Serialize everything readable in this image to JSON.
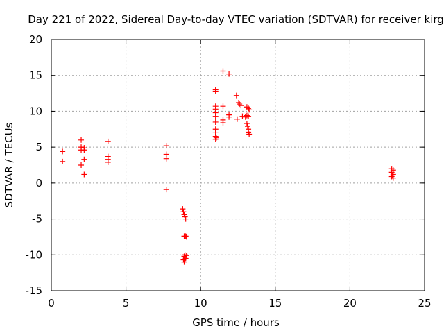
{
  "chart_data": {
    "type": "scatter",
    "title": "Day 221 of 2022, Sidereal Day-to-day VTEC variation (SDTVAR) for receiver kirg",
    "xlabel": "GPS time / hours",
    "ylabel": "SDTVAR / TECUs",
    "xlim": [
      0,
      25
    ],
    "ylim": [
      -15,
      20
    ],
    "xticks": [
      0,
      5,
      10,
      15,
      20,
      25
    ],
    "yticks": [
      -15,
      -10,
      -5,
      0,
      5,
      10,
      15,
      20
    ],
    "grid": true,
    "marker": "+",
    "series": [
      {
        "name": "SDTVAR",
        "color": "#ff0000",
        "points": [
          [
            0.75,
            4.4
          ],
          [
            0.75,
            3.0
          ],
          [
            2.0,
            6.0
          ],
          [
            2.0,
            5.0
          ],
          [
            2.0,
            4.6
          ],
          [
            2.0,
            2.5
          ],
          [
            2.2,
            4.9
          ],
          [
            2.2,
            4.6
          ],
          [
            2.2,
            3.3
          ],
          [
            2.2,
            1.2
          ],
          [
            3.8,
            5.8
          ],
          [
            3.8,
            3.7
          ],
          [
            3.8,
            3.3
          ],
          [
            3.8,
            2.9
          ],
          [
            7.7,
            5.2
          ],
          [
            7.7,
            4.0
          ],
          [
            7.7,
            3.4
          ],
          [
            7.7,
            -0.9
          ],
          [
            8.8,
            -3.6
          ],
          [
            8.85,
            -4.0
          ],
          [
            8.9,
            -4.4
          ],
          [
            8.95,
            -4.7
          ],
          [
            9.0,
            -5.0
          ],
          [
            8.9,
            -7.4
          ],
          [
            9.0,
            -7.4
          ],
          [
            9.05,
            -7.5
          ],
          [
            8.9,
            -10.2
          ],
          [
            8.95,
            -10.0
          ],
          [
            9.0,
            -10.5
          ],
          [
            9.05,
            -10.1
          ],
          [
            8.85,
            -10.7
          ],
          [
            8.9,
            -11.0
          ],
          [
            11.0,
            13.0
          ],
          [
            11.0,
            12.8
          ],
          [
            11.0,
            10.7
          ],
          [
            11.0,
            10.3
          ],
          [
            11.0,
            9.8
          ],
          [
            11.0,
            9.3
          ],
          [
            11.0,
            8.5
          ],
          [
            11.0,
            7.5
          ],
          [
            11.0,
            7.0
          ],
          [
            11.0,
            6.5
          ],
          [
            11.0,
            6.1
          ],
          [
            11.05,
            6.3
          ],
          [
            11.5,
            15.6
          ],
          [
            11.5,
            10.7
          ],
          [
            11.5,
            8.8
          ],
          [
            11.5,
            8.4
          ],
          [
            11.9,
            15.2
          ],
          [
            11.9,
            9.5
          ],
          [
            11.9,
            9.2
          ],
          [
            12.4,
            12.2
          ],
          [
            12.45,
            8.9
          ],
          [
            12.55,
            11.2
          ],
          [
            12.6,
            11.0
          ],
          [
            12.7,
            10.8
          ],
          [
            12.8,
            9.3
          ],
          [
            13.0,
            9.2
          ],
          [
            13.1,
            9.4
          ],
          [
            13.2,
            9.3
          ],
          [
            13.1,
            10.6
          ],
          [
            13.2,
            10.4
          ],
          [
            13.25,
            10.2
          ],
          [
            13.1,
            8.3
          ],
          [
            13.15,
            7.9
          ],
          [
            13.2,
            7.5
          ],
          [
            13.2,
            7.1
          ],
          [
            13.25,
            6.8
          ],
          [
            22.8,
            2.0
          ],
          [
            22.9,
            1.8
          ],
          [
            22.8,
            1.5
          ],
          [
            22.9,
            1.2
          ],
          [
            22.8,
            0.9
          ],
          [
            22.9,
            0.7
          ],
          [
            22.85,
            1.0
          ]
        ]
      }
    ]
  }
}
